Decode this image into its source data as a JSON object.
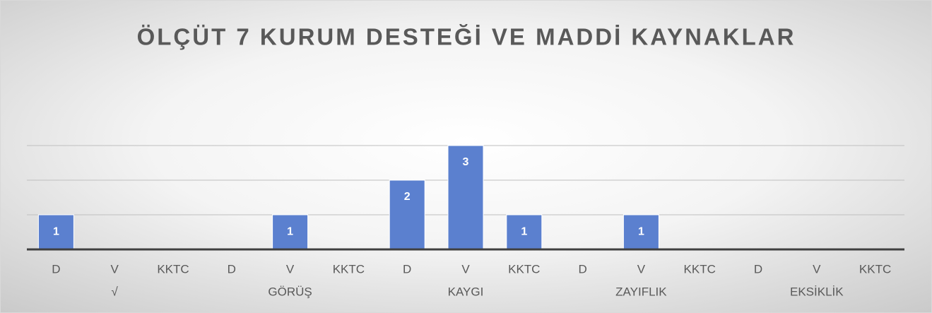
{
  "chart_data": {
    "type": "bar",
    "title": "ÖLÇÜT 7 KURUM DESTEĞİ VE MADDİ KAYNAKLAR",
    "categories": [
      "D",
      "V",
      "KKTC",
      "D",
      "V",
      "KKTC",
      "D",
      "V",
      "KKTC",
      "D",
      "V",
      "KKTC",
      "D",
      "V",
      "KKTC"
    ],
    "group_labels": [
      "√",
      "GÖRÜŞ",
      "KAYGI",
      "ZAYIFLIK",
      "EKSİKLİK"
    ],
    "values": [
      1,
      null,
      null,
      null,
      1,
      null,
      2,
      3,
      1,
      null,
      1,
      null,
      null,
      null,
      null
    ],
    "color": "#5b80cf",
    "ylim": [
      0,
      4
    ],
    "yticks": [
      1,
      2,
      3
    ],
    "grid": true
  }
}
